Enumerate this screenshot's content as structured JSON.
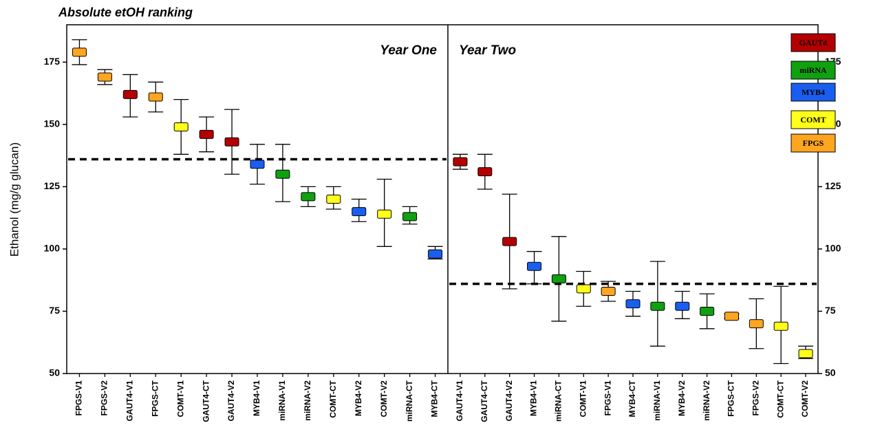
{
  "chart_data": {
    "type": "errorbar",
    "title": "Absolute etOH ranking",
    "ylabel": "Ethanol (mg/g glucan)",
    "ylim": [
      50,
      190
    ],
    "yticks": [
      50,
      75,
      100,
      125,
      150,
      175
    ],
    "series": [
      {
        "name": "Year One",
        "categories": [
          "FPGS-V1",
          "FPGS-V2",
          "GAUT4-V1",
          "FPGS-CT",
          "COMT-V1",
          "GAUT4-CT",
          "GAUT4-V2",
          "MYB4-V1",
          "miRNA-V1",
          "miRNA-V2",
          "COMT-CT",
          "MYB4-V2",
          "COMT-V2",
          "miRNA-CT",
          "MYB4-CT"
        ],
        "values": [
          179,
          169,
          162,
          161,
          149,
          146,
          143,
          134,
          130,
          121,
          120,
          115,
          114,
          113,
          98
        ],
        "low": [
          174,
          166,
          153,
          155,
          138,
          139,
          130,
          126,
          119,
          117,
          116,
          111,
          101,
          110,
          96
        ],
        "high": [
          184,
          172,
          170,
          167,
          160,
          153,
          156,
          142,
          142,
          125,
          125,
          120,
          128,
          117,
          101
        ],
        "colors": [
          "#ffa51f",
          "#ffa51f",
          "#b40000",
          "#ffa51f",
          "#ffff1a",
          "#b40000",
          "#b40000",
          "#1a5ef0",
          "#10a010",
          "#10a010",
          "#ffff1a",
          "#1a5ef0",
          "#ffff1a",
          "#10a010",
          "#1a5ef0"
        ],
        "reference": 136
      },
      {
        "name": "Year Two",
        "categories": [
          "GAUT4-V1",
          "GAUT4-CT",
          "GAUT4-V2",
          "MYB4-V1",
          "miRNA-CT",
          "COMT-V1",
          "FPGS-V1",
          "MYB4-CT",
          "miRNA-V1",
          "MYB4-V2",
          "miRNA-V2",
          "FPGS-CT",
          "FPGS-V2",
          "COMT-CT",
          "COMT-V2"
        ],
        "values": [
          135,
          131,
          103,
          93,
          88,
          84,
          83,
          78,
          77,
          77,
          75,
          73,
          70,
          69,
          58
        ],
        "low": [
          132,
          124,
          84,
          86,
          71,
          77,
          79,
          73,
          61,
          72,
          68,
          72,
          60,
          54,
          56
        ],
        "high": [
          138,
          138,
          122,
          99,
          105,
          91,
          87,
          83,
          95,
          83,
          82,
          74,
          80,
          85,
          61
        ],
        "colors": [
          "#b40000",
          "#b40000",
          "#b40000",
          "#1a5ef0",
          "#10a010",
          "#ffff1a",
          "#ffa51f",
          "#1a5ef0",
          "#10a010",
          "#1a5ef0",
          "#10a010",
          "#ffa51f",
          "#ffa51f",
          "#ffff1a",
          "#ffff1a"
        ],
        "reference": 86
      }
    ],
    "legend": [
      {
        "name": "GAUT4",
        "color": "#b40000"
      },
      {
        "name": "miRNA",
        "color": "#10a010"
      },
      {
        "name": "MYB4",
        "color": "#1a5ef0"
      },
      {
        "name": "COMT",
        "color": "#ffff1a"
      },
      {
        "name": "FPGS",
        "color": "#ffa51f"
      }
    ]
  }
}
